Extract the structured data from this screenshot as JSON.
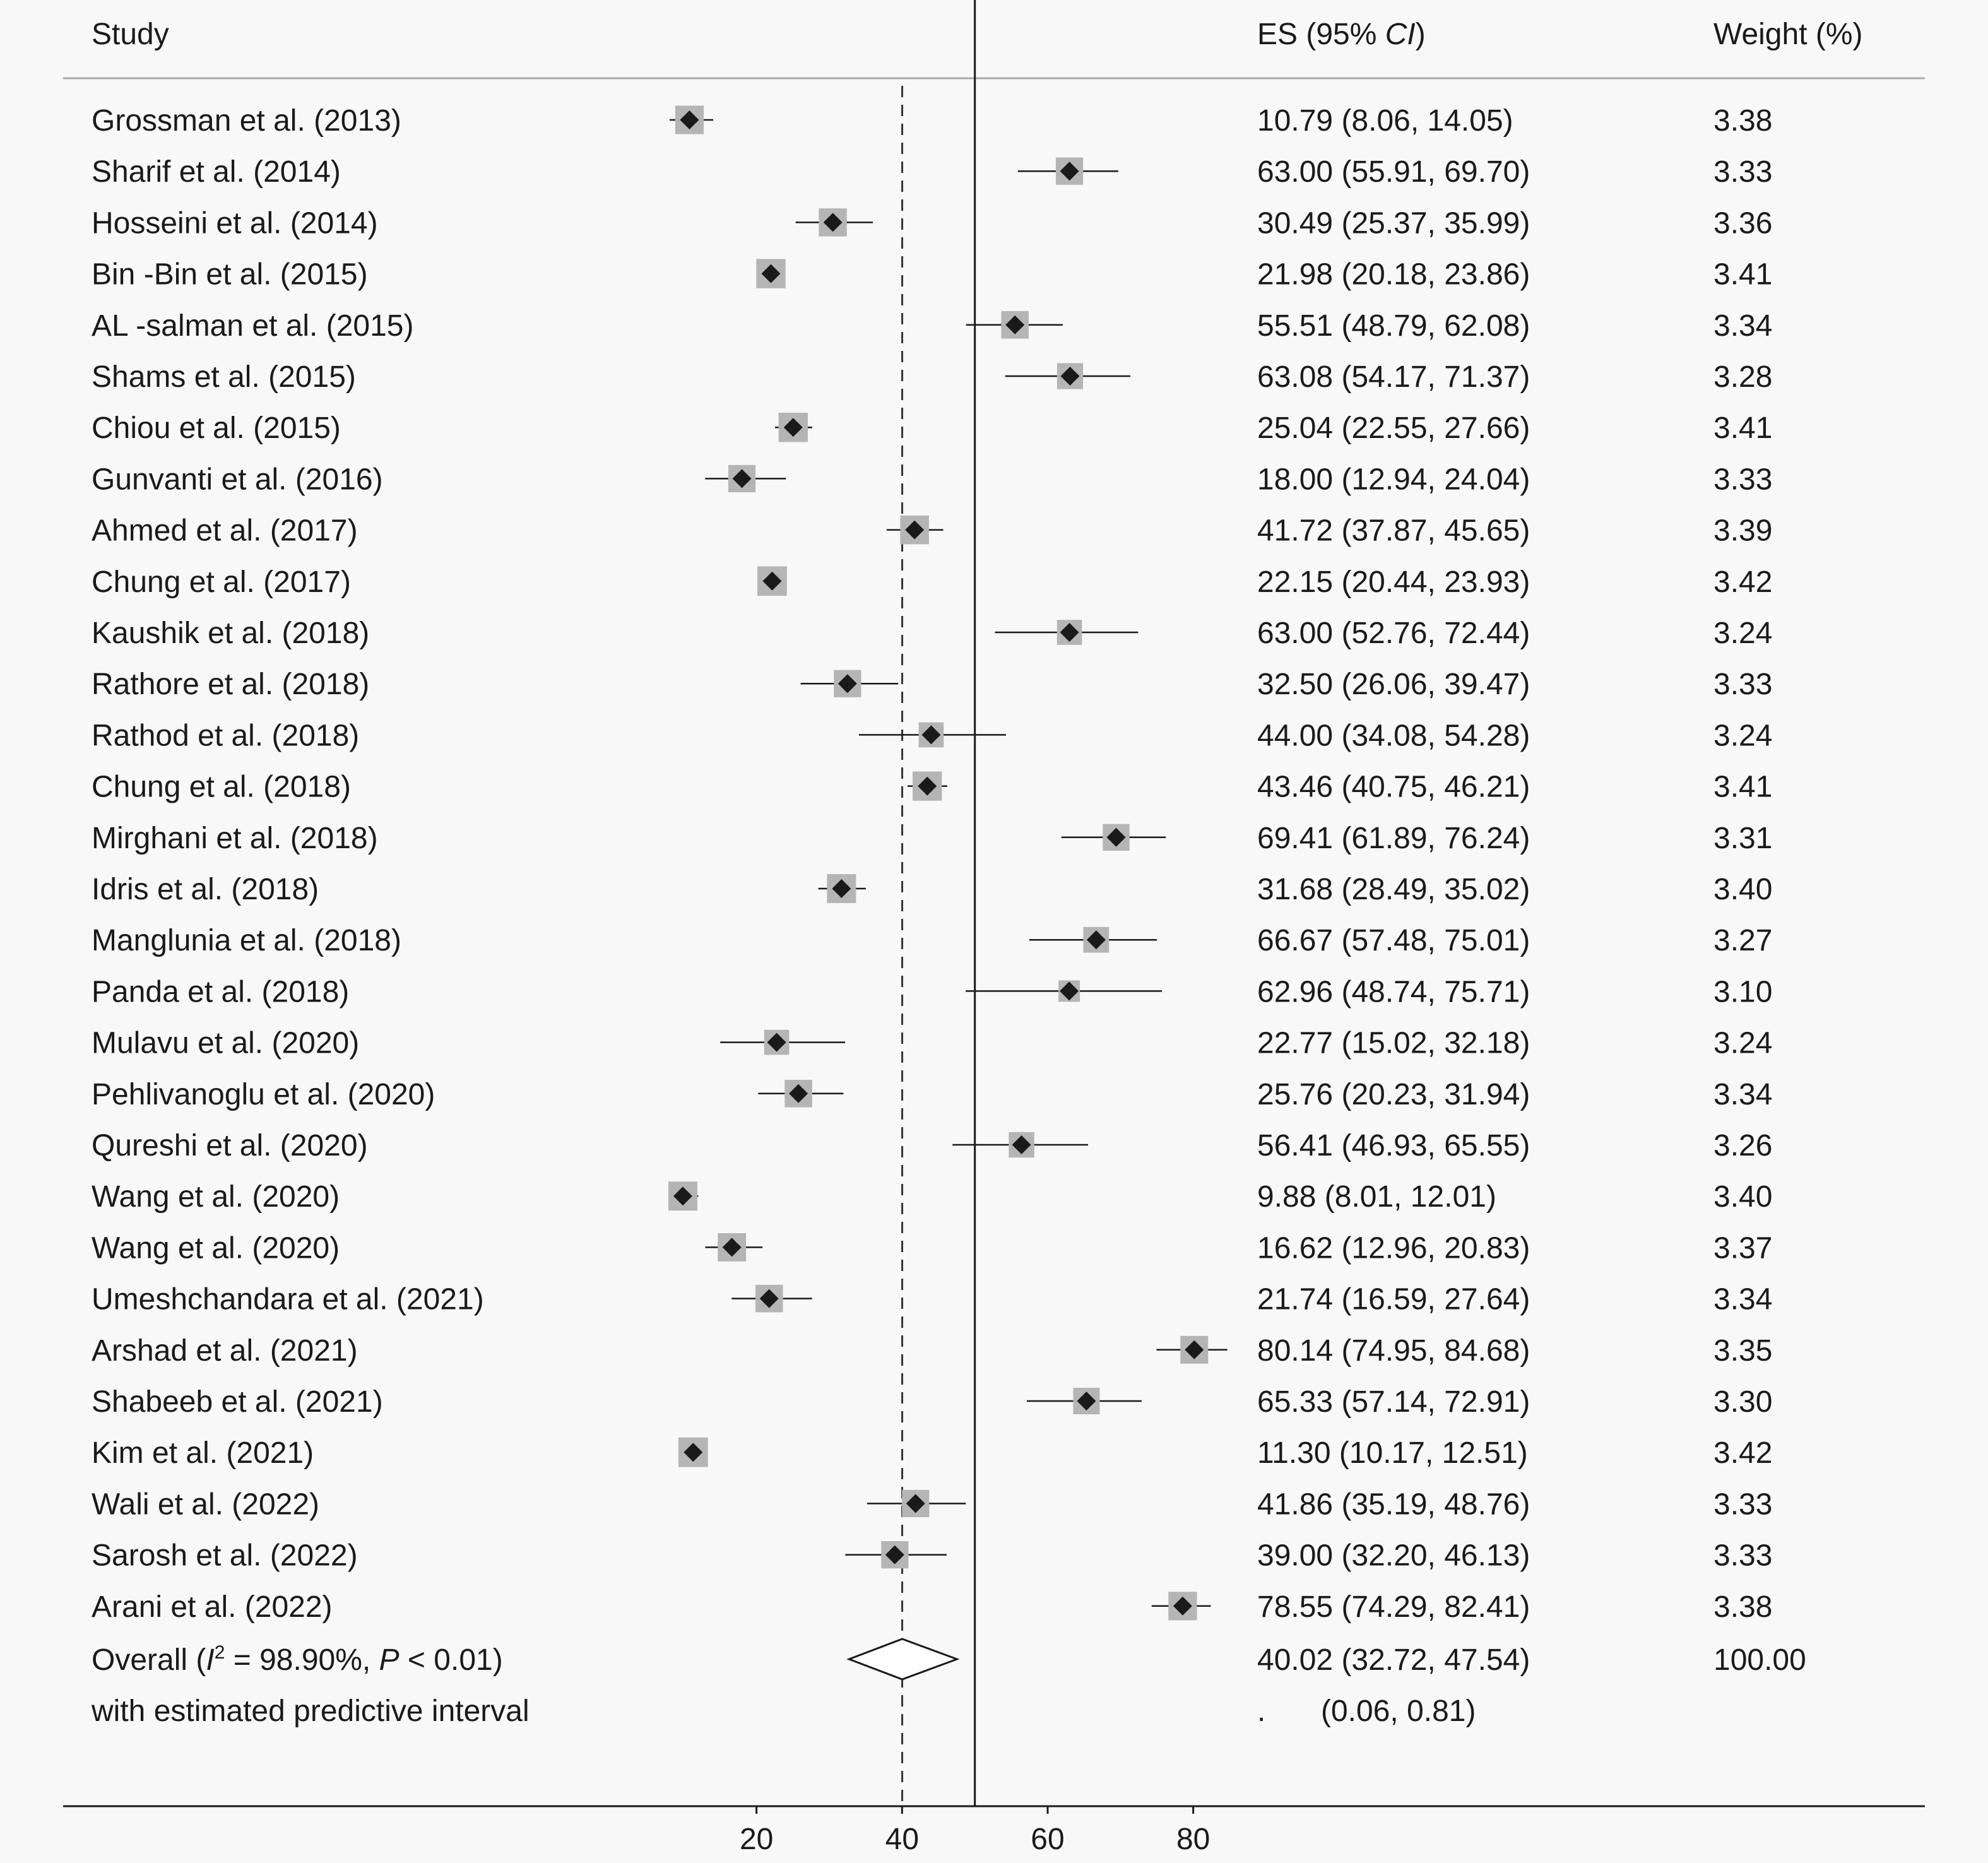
{
  "chart_data": {
    "type": "forest",
    "headers": {
      "study": "Study",
      "es": "ES (95% CI)",
      "es_prefix": "ES (95% ",
      "es_ci": "CI",
      "es_suffix": ")",
      "weight": "Weight (%)"
    },
    "studies": [
      {
        "label": "Grossman et al. (2013)",
        "es": 10.79,
        "lo": 8.06,
        "hi": 14.05,
        "es_text": "10.79 (8.06, 14.05)",
        "weight": "3.38"
      },
      {
        "label": "Sharif et al. (2014)",
        "es": 63.0,
        "lo": 55.91,
        "hi": 69.7,
        "es_text": "63.00 (55.91, 69.70)",
        "weight": "3.33"
      },
      {
        "label": "Hosseini et al. (2014)",
        "es": 30.49,
        "lo": 25.37,
        "hi": 35.99,
        "es_text": "30.49 (25.37, 35.99)",
        "weight": "3.36"
      },
      {
        "label": "Bin -Bin et al. (2015)",
        "es": 21.98,
        "lo": 20.18,
        "hi": 23.86,
        "es_text": "21.98 (20.18, 23.86)",
        "weight": "3.41"
      },
      {
        "label": "AL -salman et al. (2015)",
        "es": 55.51,
        "lo": 48.79,
        "hi": 62.08,
        "es_text": "55.51 (48.79, 62.08)",
        "weight": "3.34"
      },
      {
        "label": "Shams et al. (2015)",
        "es": 63.08,
        "lo": 54.17,
        "hi": 71.37,
        "es_text": "63.08 (54.17, 71.37)",
        "weight": "3.28"
      },
      {
        "label": "Chiou et al. (2015)",
        "es": 25.04,
        "lo": 22.55,
        "hi": 27.66,
        "es_text": "25.04 (22.55, 27.66)",
        "weight": "3.41"
      },
      {
        "label": "Gunvanti et al. (2016)",
        "es": 18.0,
        "lo": 12.94,
        "hi": 24.04,
        "es_text": "18.00 (12.94, 24.04)",
        "weight": "3.33"
      },
      {
        "label": "Ahmed et al. (2017)",
        "es": 41.72,
        "lo": 37.87,
        "hi": 45.65,
        "es_text": "41.72 (37.87, 45.65)",
        "weight": "3.39"
      },
      {
        "label": "Chung et al. (2017)",
        "es": 22.15,
        "lo": 20.44,
        "hi": 23.93,
        "es_text": "22.15 (20.44, 23.93)",
        "weight": "3.42"
      },
      {
        "label": "Kaushik et al. (2018)",
        "es": 63.0,
        "lo": 52.76,
        "hi": 72.44,
        "es_text": "63.00 (52.76, 72.44)",
        "weight": "3.24"
      },
      {
        "label": "Rathore et al. (2018)",
        "es": 32.5,
        "lo": 26.06,
        "hi": 39.47,
        "es_text": "32.50 (26.06, 39.47)",
        "weight": "3.33"
      },
      {
        "label": "Rathod et al. (2018)",
        "es": 44.0,
        "lo": 34.08,
        "hi": 54.28,
        "es_text": "44.00 (34.08, 54.28)",
        "weight": "3.24"
      },
      {
        "label": "Chung et al. (2018)",
        "es": 43.46,
        "lo": 40.75,
        "hi": 46.21,
        "es_text": "43.46 (40.75, 46.21)",
        "weight": "3.41"
      },
      {
        "label": "Mirghani et al. (2018)",
        "es": 69.41,
        "lo": 61.89,
        "hi": 76.24,
        "es_text": "69.41 (61.89, 76.24)",
        "weight": "3.31"
      },
      {
        "label": "Idris et al. (2018)",
        "es": 31.68,
        "lo": 28.49,
        "hi": 35.02,
        "es_text": "31.68 (28.49, 35.02)",
        "weight": "3.40"
      },
      {
        "label": "Manglunia et al. (2018)",
        "es": 66.67,
        "lo": 57.48,
        "hi": 75.01,
        "es_text": "66.67 (57.48, 75.01)",
        "weight": "3.27"
      },
      {
        "label": "Panda et al. (2018)",
        "es": 62.96,
        "lo": 48.74,
        "hi": 75.71,
        "es_text": "62.96 (48.74, 75.71)",
        "weight": "3.10"
      },
      {
        "label": "Mulavu et al. (2020)",
        "es": 22.77,
        "lo": 15.02,
        "hi": 32.18,
        "es_text": "22.77 (15.02, 32.18)",
        "weight": "3.24"
      },
      {
        "label": "Pehlivanoglu et al. (2020)",
        "es": 25.76,
        "lo": 20.23,
        "hi": 31.94,
        "es_text": "25.76 (20.23, 31.94)",
        "weight": "3.34"
      },
      {
        "label": "Qureshi et al. (2020)",
        "es": 56.41,
        "lo": 46.93,
        "hi": 65.55,
        "es_text": "56.41 (46.93, 65.55)",
        "weight": "3.26"
      },
      {
        "label": "Wang et al. (2020)",
        "es": 9.88,
        "lo": 8.01,
        "hi": 12.01,
        "es_text": "9.88 (8.01, 12.01)",
        "weight": "3.40"
      },
      {
        "label": "Wang et al. (2020)",
        "es": 16.62,
        "lo": 12.96,
        "hi": 20.83,
        "es_text": "16.62 (12.96, 20.83)",
        "weight": "3.37"
      },
      {
        "label": "Umeshchandara et al. (2021)",
        "es": 21.74,
        "lo": 16.59,
        "hi": 27.64,
        "es_text": "21.74 (16.59, 27.64)",
        "weight": "3.34"
      },
      {
        "label": "Arshad et al. (2021)",
        "es": 80.14,
        "lo": 74.95,
        "hi": 84.68,
        "es_text": "80.14 (74.95, 84.68)",
        "weight": "3.35"
      },
      {
        "label": "Shabeeb et al. (2021)",
        "es": 65.33,
        "lo": 57.14,
        "hi": 72.91,
        "es_text": "65.33 (57.14, 72.91)",
        "weight": "3.30"
      },
      {
        "label": "Kim et al. (2021)",
        "es": 11.3,
        "lo": 10.17,
        "hi": 12.51,
        "es_text": "11.30 (10.17, 12.51)",
        "weight": "3.42"
      },
      {
        "label": "Wali et al. (2022)",
        "es": 41.86,
        "lo": 35.19,
        "hi": 48.76,
        "es_text": "41.86 (35.19, 48.76)",
        "weight": "3.33"
      },
      {
        "label": "Sarosh et al. (2022)",
        "es": 39.0,
        "lo": 32.2,
        "hi": 46.13,
        "es_text": "39.00 (32.20, 46.13)",
        "weight": "3.33"
      },
      {
        "label": "Arani et al. (2022)",
        "es": 78.55,
        "lo": 74.29,
        "hi": 82.41,
        "es_text": "78.55 (74.29, 82.41)",
        "weight": "3.38"
      }
    ],
    "overall": {
      "label_prefix": "Overall (",
      "label_I": "I",
      "label_sup": "2",
      "label_mid": " = 98.90%, ",
      "label_P": "P",
      "label_end": " < 0.01)",
      "es": 40.02,
      "lo": 32.72,
      "hi": 47.54,
      "es_text": "40.02 (32.72, 47.54)",
      "weight": "100.00"
    },
    "predictive": {
      "label": "with estimated predictive interval",
      "dot": ".",
      "interval_text": "(0.06, 0.81)"
    },
    "reference_line": 50,
    "dashed_line": 40.02,
    "x_ticks": [
      20,
      40,
      60,
      80
    ],
    "x_ticklabels": [
      "20",
      "40",
      "60",
      "80"
    ],
    "xlim": [
      -0.1,
      100
    ]
  }
}
